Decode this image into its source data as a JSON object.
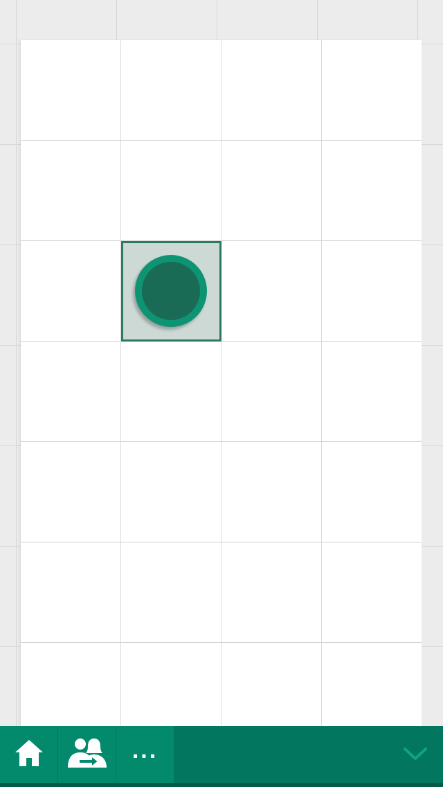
{
  "app": {
    "name": "Spreadsheet"
  },
  "sheet": {
    "columns": 4,
    "rows": 7,
    "selected_cell": {
      "row": 3,
      "column": 2
    }
  },
  "toolbar": {
    "home_icon": "home-icon",
    "share_icon": "share-people-icon",
    "more_label": "...",
    "collapse_icon": "chevron-down-icon"
  },
  "colors": {
    "accent": "#02765e",
    "button": "#038a6c",
    "selection_fill": "#ccd9d4",
    "selection_border": "#2e7a5f",
    "handle_outer": "#0e9473",
    "handle_inner": "#1a6b55"
  }
}
